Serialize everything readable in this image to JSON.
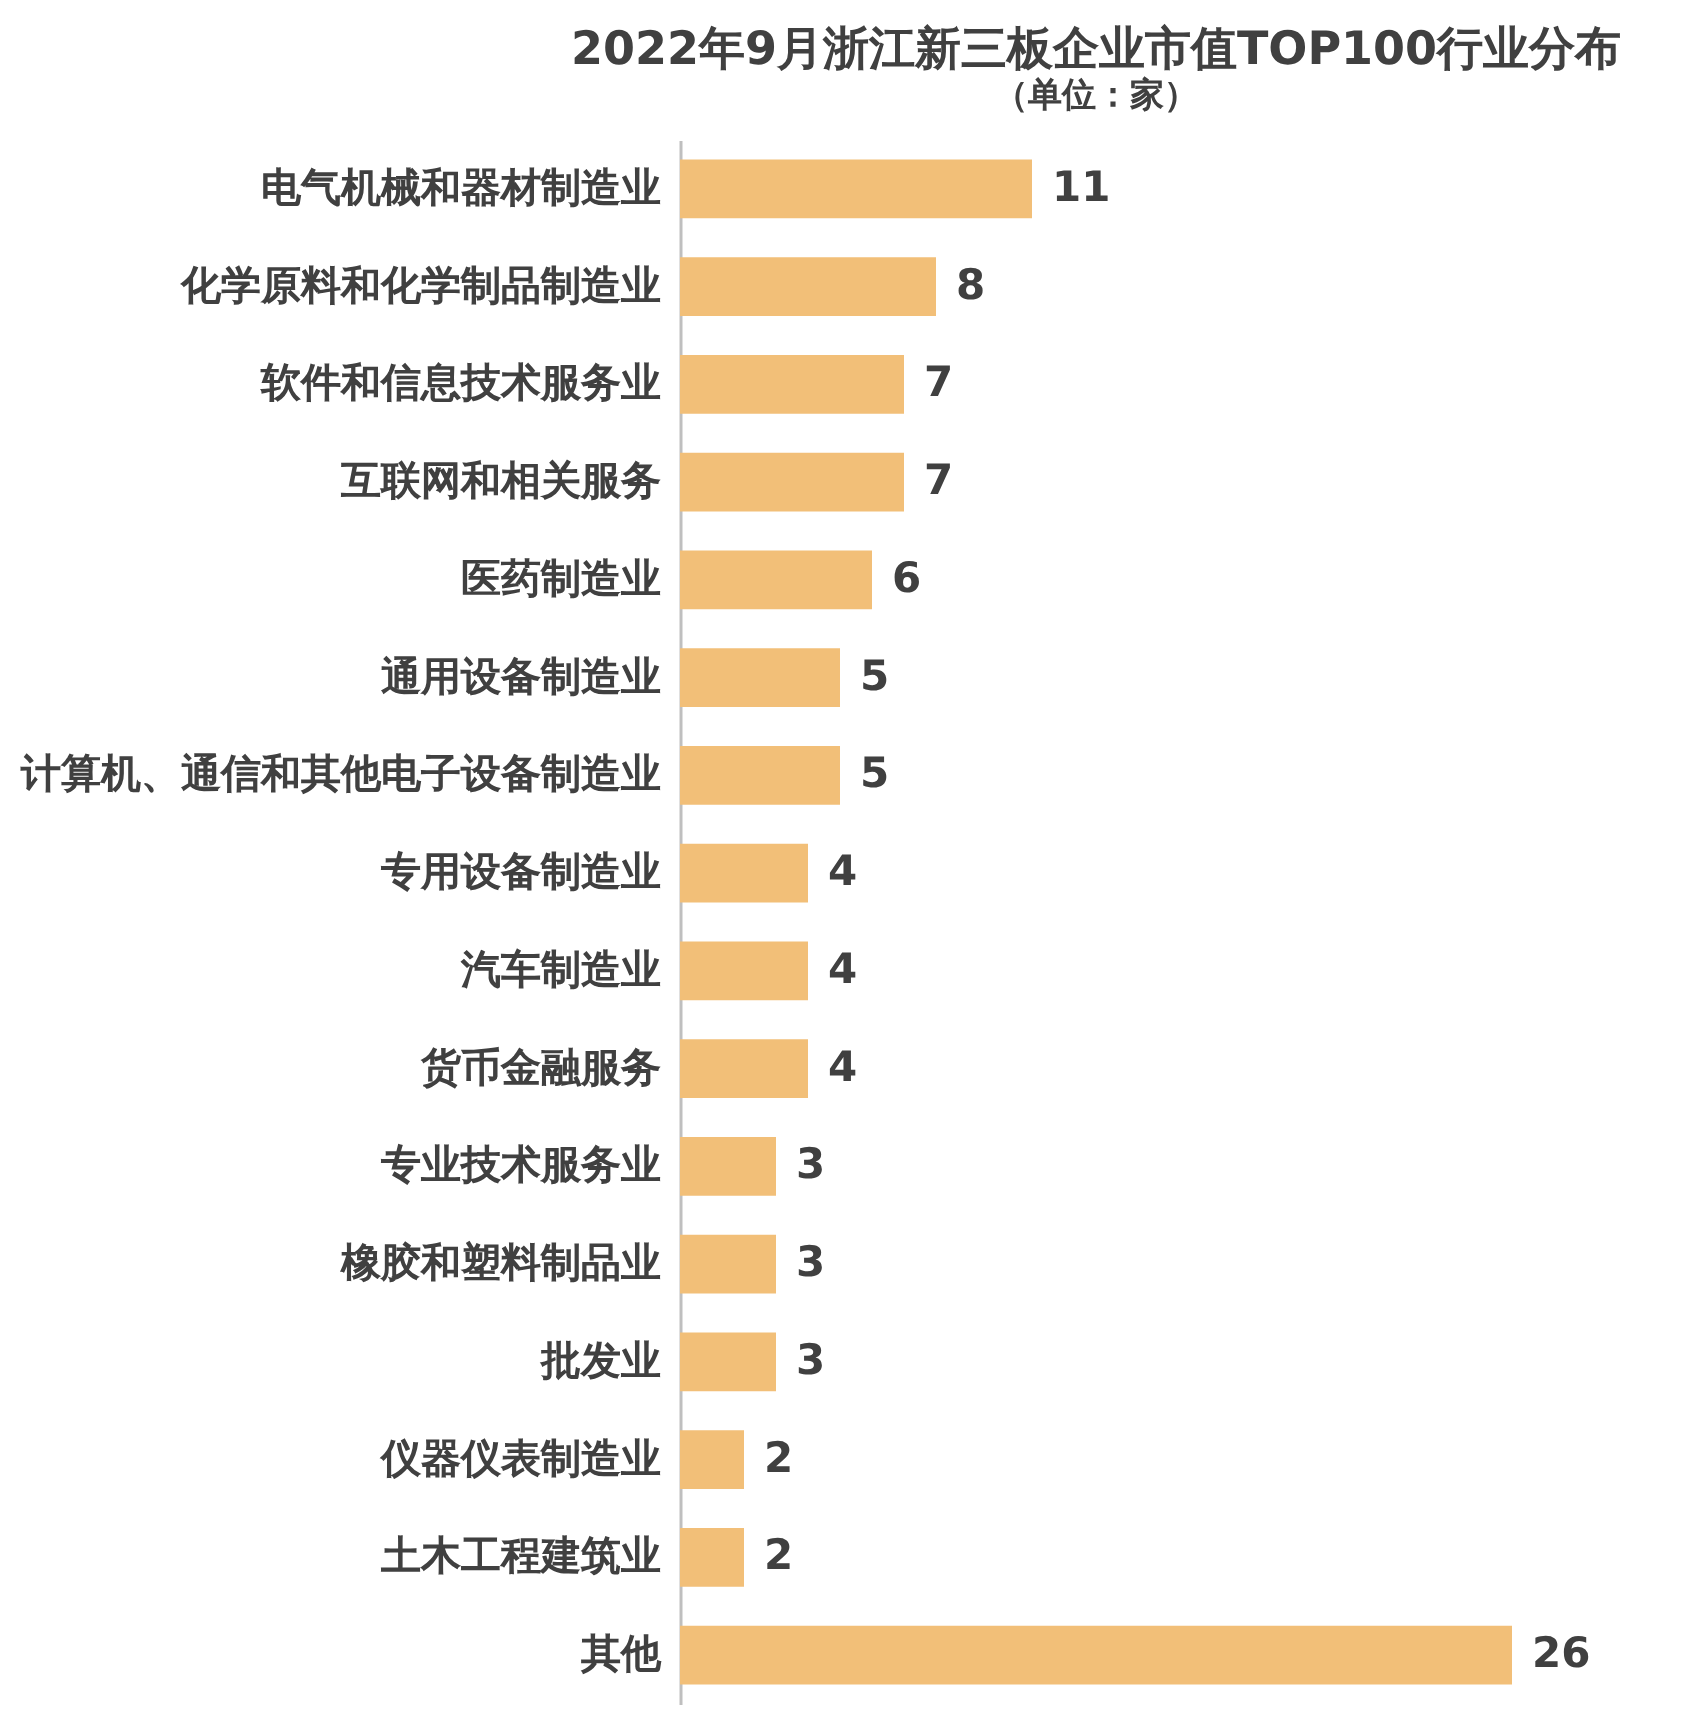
{
  "chart_data": {
    "type": "bar",
    "title": "2022年9月浙江新三板企业市值TOP100行业分布",
    "subtitle": "（单位：家）",
    "orientation": "horizontal",
    "data_labels": true,
    "color": "#f2bf78",
    "categories": [
      "电气机械和器材制造业",
      "化学原料和化学制品制造业",
      "软件和信息技术服务业",
      "互联网和相关服务",
      "医药制造业",
      "通用设备制造业",
      "计算机、通信和其他电子设备制造业",
      "专用设备制造业",
      "汽车制造业",
      "货币金融服务",
      "专业技术服务业",
      "橡胶和塑料制品业",
      "批发业",
      "仪器仪表制造业",
      "土木工程建筑业",
      "其他"
    ],
    "values": [
      11,
      8,
      7,
      7,
      6,
      5,
      5,
      4,
      4,
      4,
      3,
      3,
      3,
      2,
      2,
      26
    ]
  }
}
